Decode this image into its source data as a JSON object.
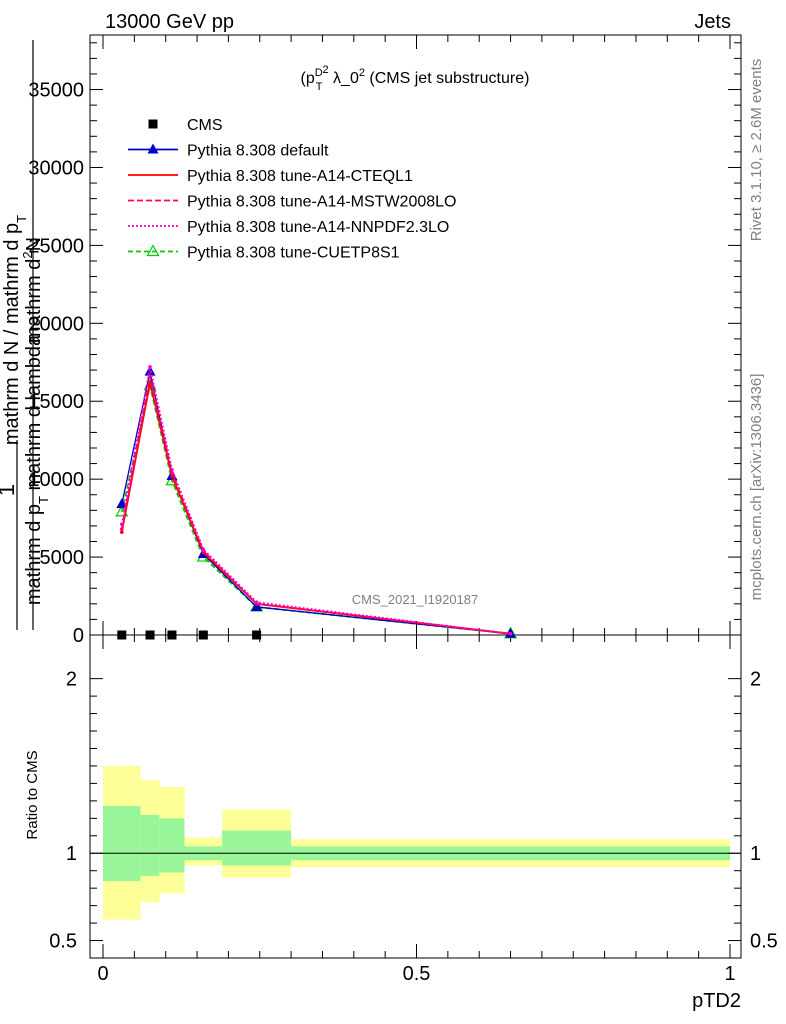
{
  "header": {
    "energy_label": "13000 GeV pp",
    "process_label": "Jets"
  },
  "side_text": {
    "rivet": "Rivet 3.1.10, ≥ 2.6M events",
    "mcplots": "mcplots.cern.ch [arXiv:1306.3436]"
  },
  "watermark": "CMS_2021_I1920187",
  "colors": {
    "cms": "#000000",
    "default": "#0000cc",
    "cteql1": "#ff0000",
    "mstw": "#ff0066",
    "nnpdf": "#ff00cc",
    "cuetp": "#00cc00",
    "band_inner": "#99f599",
    "band_outer": "#ffff99"
  },
  "chart_data": [
    {
      "type": "line",
      "panel": "main",
      "title": "(p_T^D)^2 λ_0^2 (CMS jet substructure)",
      "ylabel": "1 / mathrm d N / mathrm d p_T mathrm d^2N / mathrm d p_T mathrm d lambda",
      "xlim": [
        0,
        1
      ],
      "ylim": [
        0,
        38500
      ],
      "yticks": [
        0,
        5000,
        10000,
        15000,
        20000,
        25000,
        30000,
        35000
      ],
      "ytick_labels": [
        "0",
        "5000",
        "10000",
        "15000",
        "20000",
        "25000",
        "30000",
        "35000"
      ],
      "legend_placement": "top-left",
      "series": [
        {
          "name": "CMS",
          "key": "cms",
          "marker": "square",
          "x": [
            0.03,
            0.075,
            0.11,
            0.16,
            0.245
          ],
          "y": [
            0,
            0,
            0,
            0,
            0
          ]
        },
        {
          "name": "Pythia 8.308 default",
          "key": "default",
          "marker": "triangle",
          "dash": "",
          "x": [
            0.03,
            0.075,
            0.11,
            0.16,
            0.245,
            0.65
          ],
          "y": [
            8400,
            16900,
            10200,
            5200,
            1800,
            80
          ]
        },
        {
          "name": "Pythia 8.308 tune-A14-CTEQL1",
          "key": "cteql1",
          "marker": "none",
          "dash": "",
          "x": [
            0.03,
            0.075,
            0.11,
            0.16,
            0.245,
            0.65
          ],
          "y": [
            6600,
            16200,
            10200,
            5300,
            2000,
            80
          ]
        },
        {
          "name": "Pythia 8.308 tune-A14-MSTW2008LO",
          "key": "mstw",
          "marker": "none",
          "dash": "6,3",
          "x": [
            0.03,
            0.075,
            0.11,
            0.16,
            0.245,
            0.65
          ],
          "y": [
            6800,
            16600,
            10400,
            5400,
            2000,
            80
          ]
        },
        {
          "name": "Pythia 8.308 tune-A14-NNPDF2.3LO",
          "key": "nnpdf",
          "marker": "none",
          "dash": "2,2",
          "x": [
            0.03,
            0.075,
            0.11,
            0.16,
            0.245,
            0.65
          ],
          "y": [
            7100,
            17200,
            10600,
            5500,
            2100,
            80
          ]
        },
        {
          "name": "Pythia 8.308 tune-CUETP8S1",
          "key": "cuetp",
          "marker": "open-triangle",
          "dash": "5,3",
          "x": [
            0.03,
            0.075,
            0.11,
            0.16,
            0.245,
            0.65
          ],
          "y": [
            7900,
            16000,
            9900,
            5000,
            1800,
            80
          ]
        }
      ]
    },
    {
      "type": "area",
      "panel": "ratio",
      "xlabel": "pTD2",
      "ylabel": "Ratio to CMS",
      "xlim": [
        0,
        1
      ],
      "ylim": [
        0.4,
        2.25
      ],
      "xticks": [
        0,
        0.5,
        1
      ],
      "xtick_labels": [
        "0",
        "0.5",
        "1"
      ],
      "yticks": [
        0.5,
        1,
        2
      ],
      "ytick_labels": [
        "0.5",
        "1",
        "2"
      ],
      "reference_line": 1,
      "bins": [
        {
          "x0": 0.0,
          "x1": 0.06,
          "inner": [
            0.84,
            1.27
          ],
          "outer": [
            0.62,
            1.5
          ]
        },
        {
          "x0": 0.06,
          "x1": 0.09,
          "inner": [
            0.87,
            1.22
          ],
          "outer": [
            0.72,
            1.42
          ]
        },
        {
          "x0": 0.09,
          "x1": 0.13,
          "inner": [
            0.89,
            1.2
          ],
          "outer": [
            0.77,
            1.38
          ]
        },
        {
          "x0": 0.13,
          "x1": 0.19,
          "inner": [
            0.96,
            1.04
          ],
          "outer": [
            0.93,
            1.09
          ]
        },
        {
          "x0": 0.19,
          "x1": 0.3,
          "inner": [
            0.93,
            1.13
          ],
          "outer": [
            0.86,
            1.25
          ]
        },
        {
          "x0": 0.3,
          "x1": 1.0,
          "inner": [
            0.96,
            1.04
          ],
          "outer": [
            0.92,
            1.08
          ]
        }
      ]
    }
  ]
}
